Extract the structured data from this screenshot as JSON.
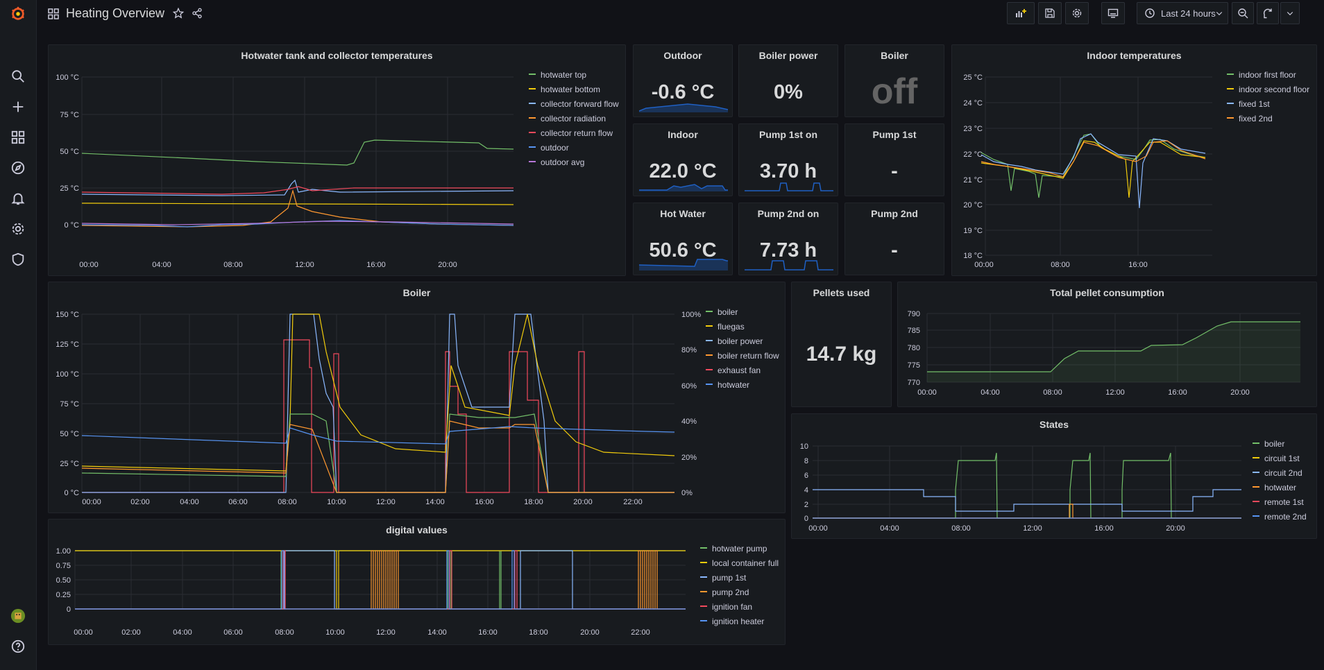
{
  "header": {
    "title": "Heating Overview",
    "time_range": "Last 24 hours"
  },
  "colors": {
    "green": "#73bf69",
    "yellow": "#f2cc0c",
    "cyan": "#8ab8ff",
    "orange": "#ff9830",
    "red": "#f2495c",
    "blue": "#5794f2",
    "purple": "#b877d9",
    "stat_line": "#1f60c4",
    "brand": "#f05a28"
  },
  "sidebar": {
    "items": [
      "grafana-logo",
      "search-icon",
      "plus-icon",
      "dashboards-icon",
      "explore-icon",
      "alerting-icon",
      "settings-icon",
      "shield-icon",
      "user-avatar",
      "help-icon"
    ]
  },
  "panels": {
    "hotwater": {
      "title": "Hotwater tank and collector temperatures",
      "y_ticks": [
        "100 °C",
        "75 °C",
        "50 °C",
        "25 °C",
        "0 °C"
      ],
      "x_ticks": [
        "00:00",
        "04:00",
        "08:00",
        "12:00",
        "16:00",
        "20:00"
      ],
      "legend": [
        "hotwater top",
        "hotwater bottom",
        "collector forward flow",
        "collector radiation",
        "collector return flow",
        "outdoor",
        "outdoor avg"
      ]
    },
    "outdoor": {
      "title": "Outdoor",
      "value": "-0.6 °C"
    },
    "boiler_power": {
      "title": "Boiler power",
      "value": "0%"
    },
    "boiler_state": {
      "title": "Boiler",
      "value": "off"
    },
    "indoor": {
      "title": "Indoor",
      "value": "22.0 °C"
    },
    "pump1_on": {
      "title": "Pump 1st on",
      "value": "3.70 h"
    },
    "pump1": {
      "title": "Pump 1st",
      "value": "-"
    },
    "hot_water": {
      "title": "Hot Water",
      "value": "50.6 °C"
    },
    "pump2_on": {
      "title": "Pump 2nd on",
      "value": "7.73 h"
    },
    "pump2": {
      "title": "Pump 2nd",
      "value": "-"
    },
    "indoor_temps": {
      "title": "Indoor temperatures",
      "y_ticks": [
        "25 °C",
        "24 °C",
        "23 °C",
        "22 °C",
        "21 °C",
        "20 °C",
        "19 °C",
        "18 °C"
      ],
      "x_ticks": [
        "00:00",
        "08:00",
        "16:00"
      ],
      "legend": [
        "indoor first floor",
        "indoor second floor",
        "fixed 1st",
        "fixed 2nd"
      ]
    },
    "boiler": {
      "title": "Boiler",
      "y_ticks": [
        "150 °C",
        "125 °C",
        "100 °C",
        "75 °C",
        "50 °C",
        "25 °C",
        "0 °C"
      ],
      "y2_ticks": [
        "100%",
        "80%",
        "60%",
        "40%",
        "20%",
        "0%"
      ],
      "x_ticks": [
        "00:00",
        "02:00",
        "04:00",
        "06:00",
        "08:00",
        "10:00",
        "12:00",
        "14:00",
        "16:00",
        "18:00",
        "20:00",
        "22:00"
      ],
      "legend": [
        "boiler",
        "fluegas",
        "boiler power",
        "boiler return flow",
        "exhaust fan",
        "hotwater"
      ]
    },
    "pellets": {
      "title": "Pellets used",
      "value": "14.7 kg"
    },
    "total_pellet": {
      "title": "Total pellet consumption",
      "y_ticks": [
        "790",
        "785",
        "780",
        "775",
        "770"
      ],
      "x_ticks": [
        "00:00",
        "04:00",
        "08:00",
        "12:00",
        "16:00",
        "20:00"
      ]
    },
    "states": {
      "title": "States",
      "y_ticks": [
        "10",
        "8",
        "6",
        "4",
        "2",
        "0"
      ],
      "x_ticks": [
        "00:00",
        "04:00",
        "08:00",
        "12:00",
        "16:00",
        "20:00"
      ],
      "legend": [
        "boiler",
        "circuit 1st",
        "circuit 2nd",
        "hotwater",
        "remote 1st",
        "remote 2nd"
      ]
    },
    "digital": {
      "title": "digital values",
      "y_ticks": [
        "1.00",
        "0.75",
        "0.50",
        "0.25",
        "0"
      ],
      "x_ticks": [
        "00:00",
        "02:00",
        "04:00",
        "06:00",
        "08:00",
        "10:00",
        "12:00",
        "14:00",
        "16:00",
        "18:00",
        "20:00",
        "22:00"
      ],
      "legend": [
        "hotwater pump",
        "local container full",
        "pump 1st",
        "pump 2nd",
        "ignition fan",
        "ignition heater"
      ]
    }
  }
}
